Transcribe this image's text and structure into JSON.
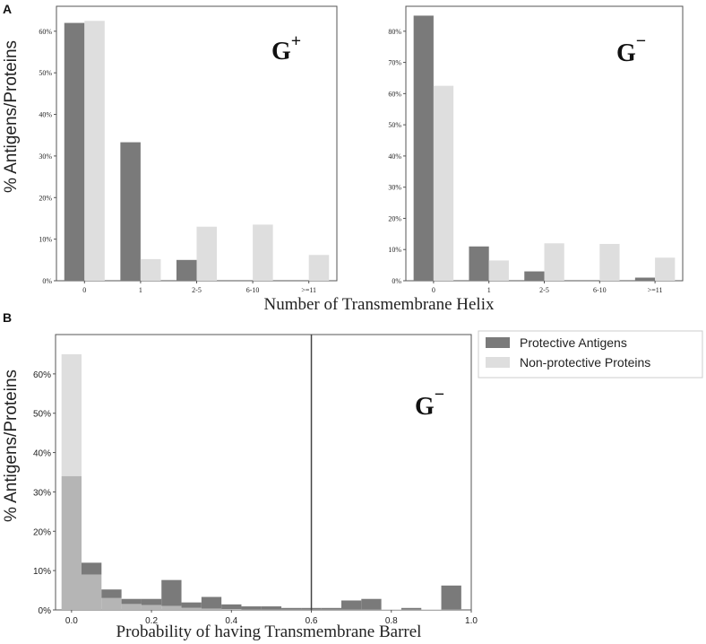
{
  "panel_labels": [
    "A",
    "B"
  ],
  "shared": {
    "ylabel": "% Antigens/Proteins",
    "xlabel_A": "Number of Transmembrane Helix"
  },
  "legend": {
    "items": [
      {
        "label": "Protective Antigens",
        "color": "#7a7a7a"
      },
      {
        "label": "Non-protective Proteins",
        "color": "#dedede"
      }
    ]
  },
  "colors": {
    "protective": "#7a7a7a",
    "nonprotective": "#dedede",
    "overlap": "#b5b5b5"
  },
  "chart_data": [
    {
      "type": "bar",
      "panel": "A",
      "annotation": {
        "base": "G",
        "sup": "+"
      },
      "categories": [
        "0",
        "1",
        "2-5",
        "6-10",
        ">=11"
      ],
      "ylim": [
        0,
        66
      ],
      "yticks": [
        "0%",
        "10%",
        "20%",
        "30%",
        "40%",
        "50%",
        "60%"
      ],
      "series": [
        {
          "name": "Protective Antigens",
          "values": [
            62,
            33.3,
            5,
            0,
            0
          ]
        },
        {
          "name": "Non-protective Proteins",
          "values": [
            62.5,
            5.2,
            13,
            13.5,
            6.2
          ]
        }
      ]
    },
    {
      "type": "bar",
      "panel": "A",
      "annotation": {
        "base": "G",
        "sup": "−"
      },
      "categories": [
        "0",
        "1",
        "2-5",
        "6-10",
        ">=11"
      ],
      "ylim": [
        0,
        88
      ],
      "yticks": [
        "0%",
        "10%",
        "20%",
        "30%",
        "40%",
        "50%",
        "60%",
        "70%",
        "80%"
      ],
      "series": [
        {
          "name": "Protective Antigens",
          "values": [
            85,
            11,
            3,
            0,
            1
          ]
        },
        {
          "name": "Non-protective Proteins",
          "values": [
            62.5,
            6.5,
            12,
            11.8,
            7.4
          ]
        }
      ]
    },
    {
      "type": "histogram",
      "panel": "B",
      "annotation": {
        "base": "G",
        "sup": "−"
      },
      "xlabel": "Probability of having Transmembrane Barrel",
      "xlim": [
        -0.04,
        1.0
      ],
      "ylim": [
        0,
        70
      ],
      "xticks": [
        "0.0",
        "0.2",
        "0.4",
        "0.6",
        "0.8",
        "1.0"
      ],
      "yticks": [
        "0%",
        "10%",
        "20%",
        "30%",
        "40%",
        "50%",
        "60%"
      ],
      "threshold": 0.6,
      "bin_edges": [
        -0.025,
        0.025,
        0.075,
        0.125,
        0.175,
        0.225,
        0.275,
        0.325,
        0.375,
        0.425,
        0.475,
        0.525,
        0.575,
        0.625,
        0.675,
        0.725,
        0.775,
        0.825,
        0.875,
        0.925,
        0.975
      ],
      "series": [
        {
          "name": "Protective Antigens",
          "values": [
            34,
            12,
            5.2,
            2.8,
            2.8,
            7.6,
            1.9,
            3.3,
            1.4,
            0.9,
            0.9,
            0.5,
            0.5,
            0.5,
            2.4,
            2.8,
            0,
            0.5,
            0,
            6.2
          ]
        },
        {
          "name": "Non-protective Proteins",
          "values": [
            65,
            9,
            3,
            1.5,
            1.2,
            1.0,
            0.5,
            0.3,
            0.2,
            0.1,
            0.1,
            0.1,
            0.1,
            0.1,
            0.1,
            0.1,
            0.1,
            0.1,
            0.1,
            0.1
          ]
        }
      ]
    }
  ]
}
